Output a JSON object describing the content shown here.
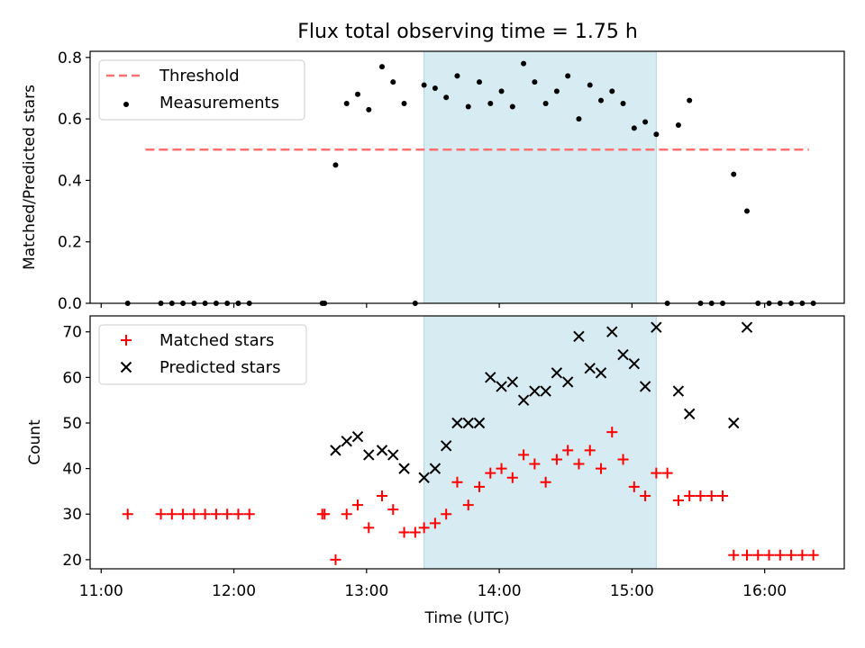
{
  "title": "Flux total observing time = 1.75 h",
  "colors": {
    "threshold": "#ff7070",
    "measurement": "#000000",
    "matched": "#ff0000",
    "predicted": "#000000",
    "window": "#add8e6"
  },
  "chart_data": [
    {
      "type": "scatter",
      "panel": "top",
      "ylabel": "Matched/Predicted stars",
      "ylim": [
        0,
        0.82
      ],
      "yticks": [
        "0.0",
        "0.2",
        "0.4",
        "0.6",
        "0.8"
      ],
      "xlim": [
        "10:55",
        "16:36"
      ],
      "highlight_window": [
        "13:26",
        "15:11"
      ],
      "threshold": {
        "name": "Threshold",
        "value": 0.5,
        "x_start": "11:20",
        "x_end": "16:20"
      },
      "legend": {
        "placement": "upper-left",
        "entries": [
          "Threshold",
          "Measurements"
        ]
      },
      "series": [
        {
          "name": "Measurements",
          "points": [
            [
              "11:12",
              0
            ],
            [
              "11:27",
              0
            ],
            [
              "11:32",
              0
            ],
            [
              "11:37",
              0
            ],
            [
              "11:42",
              0
            ],
            [
              "11:47",
              0
            ],
            [
              "11:52",
              0
            ],
            [
              "11:57",
              0
            ],
            [
              "12:02",
              0
            ],
            [
              "12:07",
              0
            ],
            [
              "12:40",
              0
            ],
            [
              "12:41",
              0
            ],
            [
              "12:46",
              0.45
            ],
            [
              "12:51",
              0.65
            ],
            [
              "12:56",
              0.68
            ],
            [
              "13:01",
              0.63
            ],
            [
              "13:07",
              0.77
            ],
            [
              "13:12",
              0.72
            ],
            [
              "13:17",
              0.65
            ],
            [
              "13:22",
              0
            ],
            [
              "13:26",
              0.71
            ],
            [
              "13:31",
              0.7
            ],
            [
              "13:36",
              0.67
            ],
            [
              "13:41",
              0.74
            ],
            [
              "13:46",
              0.64
            ],
            [
              "13:51",
              0.72
            ],
            [
              "13:56",
              0.65
            ],
            [
              "14:01",
              0.69
            ],
            [
              "14:06",
              0.64
            ],
            [
              "14:11",
              0.78
            ],
            [
              "14:16",
              0.72
            ],
            [
              "14:21",
              0.65
            ],
            [
              "14:26",
              0.69
            ],
            [
              "14:31",
              0.74
            ],
            [
              "14:36",
              0.6
            ],
            [
              "14:41",
              0.71
            ],
            [
              "14:46",
              0.66
            ],
            [
              "14:51",
              0.69
            ],
            [
              "14:56",
              0.65
            ],
            [
              "15:01",
              0.57
            ],
            [
              "15:06",
              0.59
            ],
            [
              "15:11",
              0.55
            ],
            [
              "15:16",
              0
            ],
            [
              "15:21",
              0.58
            ],
            [
              "15:26",
              0.66
            ],
            [
              "15:31",
              0
            ],
            [
              "15:36",
              0
            ],
            [
              "15:41",
              0
            ],
            [
              "15:46",
              0.42
            ],
            [
              "15:52",
              0.3
            ],
            [
              "15:57",
              0
            ],
            [
              "16:02",
              0
            ],
            [
              "16:07",
              0
            ],
            [
              "16:12",
              0
            ],
            [
              "16:17",
              0
            ],
            [
              "16:22",
              0
            ]
          ]
        }
      ]
    },
    {
      "type": "scatter",
      "panel": "bottom",
      "xlabel": "Time (UTC)",
      "ylabel": "Count",
      "ylim": [
        18,
        73.5
      ],
      "yticks": [
        "20",
        "30",
        "40",
        "50",
        "60",
        "70"
      ],
      "xlim": [
        "10:55",
        "16:36"
      ],
      "xticks": [
        "11:00",
        "12:00",
        "13:00",
        "14:00",
        "15:00",
        "16:00"
      ],
      "highlight_window": [
        "13:26",
        "15:11"
      ],
      "legend": {
        "placement": "upper-left",
        "entries": [
          "Matched stars",
          "Predicted stars"
        ]
      },
      "series": [
        {
          "name": "Matched stars",
          "marker": "+",
          "points": [
            [
              "11:12",
              30
            ],
            [
              "11:27",
              30
            ],
            [
              "11:32",
              30
            ],
            [
              "11:37",
              30
            ],
            [
              "11:42",
              30
            ],
            [
              "11:47",
              30
            ],
            [
              "11:52",
              30
            ],
            [
              "11:57",
              30
            ],
            [
              "12:02",
              30
            ],
            [
              "12:07",
              30
            ],
            [
              "12:40",
              30
            ],
            [
              "12:41",
              30
            ],
            [
              "12:46",
              20
            ],
            [
              "12:51",
              30
            ],
            [
              "12:56",
              32
            ],
            [
              "13:01",
              27
            ],
            [
              "13:07",
              34
            ],
            [
              "13:12",
              31
            ],
            [
              "13:17",
              26
            ],
            [
              "13:22",
              26
            ],
            [
              "13:26",
              27
            ],
            [
              "13:31",
              28
            ],
            [
              "13:36",
              30
            ],
            [
              "13:41",
              37
            ],
            [
              "13:46",
              32
            ],
            [
              "13:51",
              36
            ],
            [
              "13:56",
              39
            ],
            [
              "14:01",
              40
            ],
            [
              "14:06",
              38
            ],
            [
              "14:11",
              43
            ],
            [
              "14:16",
              41
            ],
            [
              "14:21",
              37
            ],
            [
              "14:26",
              42
            ],
            [
              "14:31",
              44
            ],
            [
              "14:36",
              41
            ],
            [
              "14:41",
              44
            ],
            [
              "14:46",
              40
            ],
            [
              "14:51",
              48
            ],
            [
              "14:56",
              42
            ],
            [
              "15:01",
              36
            ],
            [
              "15:06",
              34
            ],
            [
              "15:11",
              39
            ],
            [
              "15:16",
              39
            ],
            [
              "15:21",
              33
            ],
            [
              "15:26",
              34
            ],
            [
              "15:31",
              34
            ],
            [
              "15:36",
              34
            ],
            [
              "15:41",
              34
            ],
            [
              "15:46",
              21
            ],
            [
              "15:52",
              21
            ],
            [
              "15:57",
              21
            ],
            [
              "16:02",
              21
            ],
            [
              "16:07",
              21
            ],
            [
              "16:12",
              21
            ],
            [
              "16:17",
              21
            ],
            [
              "16:22",
              21
            ]
          ]
        },
        {
          "name": "Predicted stars",
          "marker": "x",
          "points": [
            [
              "12:46",
              44
            ],
            [
              "12:51",
              46
            ],
            [
              "12:56",
              47
            ],
            [
              "13:01",
              43
            ],
            [
              "13:07",
              44
            ],
            [
              "13:12",
              43
            ],
            [
              "13:17",
              40
            ],
            [
              "13:26",
              38
            ],
            [
              "13:31",
              40
            ],
            [
              "13:36",
              45
            ],
            [
              "13:41",
              50
            ],
            [
              "13:46",
              50
            ],
            [
              "13:51",
              50
            ],
            [
              "13:56",
              60
            ],
            [
              "14:01",
              58
            ],
            [
              "14:06",
              59
            ],
            [
              "14:11",
              55
            ],
            [
              "14:16",
              57
            ],
            [
              "14:21",
              57
            ],
            [
              "14:26",
              61
            ],
            [
              "14:31",
              59
            ],
            [
              "14:36",
              69
            ],
            [
              "14:41",
              62
            ],
            [
              "14:46",
              61
            ],
            [
              "14:51",
              70
            ],
            [
              "14:56",
              65
            ],
            [
              "15:01",
              63
            ],
            [
              "15:06",
              58
            ],
            [
              "15:11",
              71
            ],
            [
              "15:21",
              57
            ],
            [
              "15:26",
              52
            ],
            [
              "15:46",
              50
            ],
            [
              "15:52",
              71
            ]
          ]
        }
      ]
    }
  ]
}
